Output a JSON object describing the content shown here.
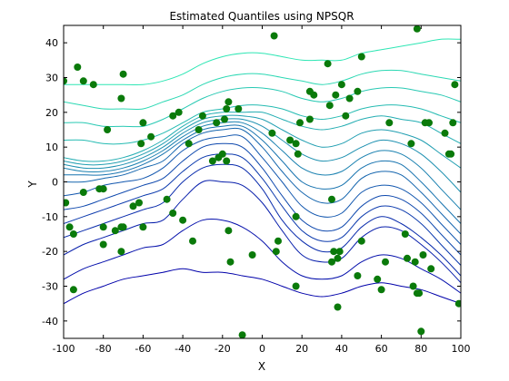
{
  "chart_data": {
    "type": "line",
    "title": "Estimated Quantiles using NPSQR",
    "xlabel": "X",
    "ylabel": "Y",
    "xlim": [
      -100,
      100
    ],
    "ylim": [
      -45,
      45
    ],
    "xticks": [
      -100,
      -80,
      -60,
      -40,
      -20,
      0,
      20,
      40,
      60,
      80,
      100
    ],
    "yticks": [
      -40,
      -30,
      -20,
      -10,
      0,
      10,
      20,
      30,
      40
    ],
    "grid": false,
    "colors": {
      "quantile_low": "#0000aa",
      "quantile_high": "#2ee6b4",
      "points": "#0a7a0a"
    },
    "x": [
      -100,
      -90,
      -80,
      -70,
      -60,
      -50,
      -40,
      -30,
      -20,
      -10,
      0,
      10,
      20,
      30,
      40,
      50,
      60,
      70,
      80,
      90,
      100
    ],
    "series": [
      {
        "values": [
          -35,
          -32,
          -30,
          -28,
          -27,
          -26,
          -25,
          -26,
          -26,
          -27,
          -28,
          -30,
          -32,
          -33,
          -32,
          -30,
          -29,
          -30,
          -31,
          -33,
          -35
        ]
      },
      {
        "values": [
          -28,
          -25,
          -23,
          -21,
          -19,
          -18,
          -14,
          -11,
          -11,
          -13,
          -17,
          -23,
          -27,
          -28,
          -27,
          -23,
          -21,
          -22,
          -25,
          -28,
          -32
        ]
      },
      {
        "values": [
          -21,
          -18,
          -16,
          -14,
          -12,
          -11,
          -5,
          0,
          0,
          -1,
          -6,
          -14,
          -21,
          -23,
          -22,
          -16,
          -13,
          -14,
          -18,
          -23,
          -29
        ]
      },
      {
        "values": [
          -16,
          -14,
          -12,
          -10,
          -8,
          -6,
          0,
          4,
          5,
          4,
          -2,
          -11,
          -17,
          -20,
          -19,
          -13,
          -10,
          -12,
          -16,
          -21,
          -27
        ]
      },
      {
        "values": [
          -12,
          -10,
          -8,
          -6,
          -4,
          -2,
          3,
          7,
          8,
          7,
          1,
          -7,
          -14,
          -17,
          -16,
          -10,
          -7,
          -8,
          -12,
          -18,
          -24
        ]
      },
      {
        "values": [
          -8,
          -7,
          -5,
          -3,
          -1,
          1,
          6,
          10,
          11,
          10,
          4,
          -4,
          -11,
          -14,
          -13,
          -7,
          -4,
          -5,
          -9,
          -15,
          -21
        ]
      },
      {
        "values": [
          -4,
          -3,
          -1,
          0,
          1,
          4,
          9,
          12,
          13,
          13,
          7,
          0,
          -7,
          -10,
          -9,
          -3,
          -1,
          -2,
          -6,
          -12,
          -18
        ]
      },
      {
        "values": [
          0,
          0,
          1,
          2,
          4,
          6,
          11,
          14,
          15,
          15,
          10,
          3,
          -3,
          -6,
          -5,
          1,
          3,
          2,
          -3,
          -9,
          -15
        ]
      },
      {
        "values": [
          2,
          2,
          2,
          3,
          5,
          8,
          12,
          15,
          16,
          16,
          12,
          6,
          0,
          -2,
          -1,
          4,
          6,
          5,
          0,
          -6,
          -12
        ]
      },
      {
        "values": [
          4,
          3,
          3,
          4,
          6,
          9,
          13,
          16,
          17,
          17,
          14,
          9,
          4,
          2,
          3,
          7,
          9,
          8,
          4,
          -2,
          -8
        ]
      },
      {
        "values": [
          5,
          4,
          4,
          5,
          7,
          10,
          14,
          17,
          18,
          18,
          16,
          12,
          8,
          6,
          7,
          10,
          12,
          11,
          8,
          3,
          -3
        ]
      },
      {
        "values": [
          6,
          5,
          5,
          6,
          8,
          11,
          15,
          18,
          19,
          19,
          18,
          15,
          12,
          10,
          11,
          14,
          15,
          14,
          12,
          8,
          4
        ]
      },
      {
        "values": [
          7,
          6,
          6,
          7,
          9,
          12,
          16,
          19,
          20,
          20,
          20,
          18,
          16,
          15,
          16,
          18,
          19,
          18,
          17,
          14,
          11
        ]
      },
      {
        "values": [
          12,
          12,
          11,
          11,
          12,
          14,
          17,
          20,
          21,
          22,
          22,
          21,
          19,
          18,
          19,
          21,
          22,
          22,
          21,
          19,
          17
        ]
      },
      {
        "values": [
          17,
          17,
          16,
          16,
          16,
          18,
          21,
          24,
          26,
          27,
          27,
          26,
          24,
          23,
          24,
          26,
          27,
          27,
          26,
          25,
          23
        ]
      },
      {
        "values": [
          23,
          22,
          21,
          21,
          21,
          23,
          25,
          28,
          30,
          31,
          31,
          30,
          29,
          28,
          29,
          31,
          32,
          32,
          31,
          30,
          29
        ]
      },
      {
        "values": [
          28,
          28,
          28,
          28,
          28,
          29,
          31,
          34,
          36,
          37,
          37,
          36,
          35,
          35,
          35,
          37,
          38,
          39,
          40,
          41,
          41
        ]
      }
    ],
    "points": [
      [
        -100,
        29
      ],
      [
        -93,
        33
      ],
      [
        -90,
        29
      ],
      [
        -85,
        28
      ],
      [
        -70,
        31
      ],
      [
        -71,
        24
      ],
      [
        -78,
        15
      ],
      [
        -60,
        17
      ],
      [
        -45,
        19
      ],
      [
        -42,
        20
      ],
      [
        -30,
        19
      ],
      [
        -23,
        17
      ],
      [
        -19,
        18
      ],
      [
        -18,
        21
      ],
      [
        -17,
        23
      ],
      [
        -12,
        21
      ],
      [
        6,
        42
      ],
      [
        24,
        26
      ],
      [
        26,
        25
      ],
      [
        33,
        34
      ],
      [
        37,
        25
      ],
      [
        40,
        28
      ],
      [
        42,
        19
      ],
      [
        44,
        24
      ],
      [
        48,
        26
      ],
      [
        50,
        36
      ],
      [
        64,
        17
      ],
      [
        75,
        11
      ],
      [
        78,
        44
      ],
      [
        82,
        17
      ],
      [
        84,
        17
      ],
      [
        92,
        14
      ],
      [
        94,
        8
      ],
      [
        95,
        8
      ],
      [
        96,
        17
      ],
      [
        97,
        28
      ],
      [
        -99,
        -6
      ],
      [
        -97,
        -13
      ],
      [
        -95,
        -15
      ],
      [
        -90,
        -3
      ],
      [
        -82,
        -2
      ],
      [
        -80,
        -2
      ],
      [
        -80,
        -13
      ],
      [
        -80,
        -18
      ],
      [
        -74,
        -14
      ],
      [
        -71,
        -13
      ],
      [
        -70,
        -13
      ],
      [
        -71,
        -20
      ],
      [
        -65,
        -7
      ],
      [
        -62,
        -6
      ],
      [
        -60,
        -13
      ],
      [
        -61,
        11
      ],
      [
        -56,
        13
      ],
      [
        -48,
        -5
      ],
      [
        -45,
        -9
      ],
      [
        -40,
        -11
      ],
      [
        -35,
        -17
      ],
      [
        -37,
        11
      ],
      [
        -32,
        15
      ],
      [
        -25,
        6
      ],
      [
        -22,
        7
      ],
      [
        -20,
        8
      ],
      [
        -18,
        6
      ],
      [
        -17,
        -14
      ],
      [
        -16,
        -23
      ],
      [
        -10,
        -44
      ],
      [
        -5,
        -21
      ],
      [
        5,
        14
      ],
      [
        7,
        -20
      ],
      [
        8,
        -17
      ],
      [
        14,
        12
      ],
      [
        17,
        11
      ],
      [
        18,
        8
      ],
      [
        19,
        17
      ],
      [
        17,
        -10
      ],
      [
        17,
        -30
      ],
      [
        24,
        18
      ],
      [
        34,
        22
      ],
      [
        35,
        -23
      ],
      [
        36,
        -20
      ],
      [
        38,
        -22
      ],
      [
        39,
        -20
      ],
      [
        38,
        -36
      ],
      [
        48,
        -27
      ],
      [
        50,
        -17
      ],
      [
        58,
        -28
      ],
      [
        60,
        -31
      ],
      [
        62,
        -23
      ],
      [
        72,
        -15
      ],
      [
        73,
        -22
      ],
      [
        76,
        -30
      ],
      [
        77,
        -23
      ],
      [
        78,
        -32
      ],
      [
        80,
        -43
      ],
      [
        79,
        -32
      ],
      [
        81,
        -21
      ],
      [
        85,
        -25
      ],
      [
        99,
        -35
      ],
      [
        -95,
        -31
      ],
      [
        35,
        -5
      ]
    ]
  }
}
